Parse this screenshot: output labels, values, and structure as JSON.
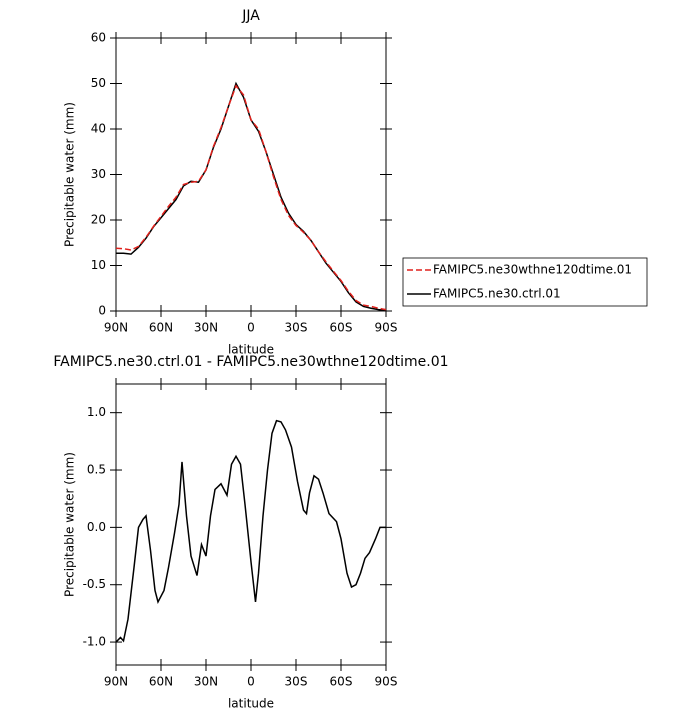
{
  "chart_data": [
    {
      "type": "line",
      "title": "JJA",
      "xlabel": "latitude",
      "ylabel": "Precipitable water (mm)",
      "x": [
        90,
        85,
        80,
        75,
        70,
        65,
        60,
        55,
        50,
        45,
        40,
        35,
        30,
        25,
        20,
        15,
        10,
        5,
        0,
        -5,
        -10,
        -15,
        -20,
        -25,
        -30,
        -35,
        -40,
        -45,
        -50,
        -55,
        -60,
        -65,
        -70,
        -75,
        -80,
        -85,
        -90
      ],
      "series": [
        {
          "name": "FAMIPC5.ne30wthne120dtime.01",
          "color": "#e0201b",
          "linestyle": "dashed",
          "values": [
            13.8,
            13.7,
            13.4,
            14.2,
            16.2,
            18.6,
            20.8,
            23,
            25,
            27.8,
            28.3,
            28.5,
            31,
            36.2,
            40.3,
            45,
            49.5,
            47.5,
            42,
            40,
            35,
            29.5,
            24.5,
            21,
            18.8,
            17.3,
            15.5,
            13,
            10.8,
            8.7,
            6.7,
            4.3,
            2.3,
            1.3,
            1,
            0.6,
            0.3
          ]
        },
        {
          "name": "FAMIPC5.ne30.ctrl.01",
          "color": "#000000",
          "linestyle": "solid",
          "values": [
            12.7,
            12.7,
            12.5,
            14,
            16,
            18.5,
            20.5,
            22.5,
            24.5,
            27.5,
            28.5,
            28.3,
            31,
            36,
            40,
            45,
            50,
            47,
            42,
            39.5,
            35,
            30,
            25,
            21.5,
            19,
            17.5,
            15.5,
            13,
            10.5,
            8.5,
            6.5,
            4,
            2,
            1,
            0.6,
            0.3,
            0.1
          ]
        }
      ],
      "xlim": [
        90,
        -90
      ],
      "xticks": [
        {
          "value": 90,
          "label": "90N"
        },
        {
          "value": 60,
          "label": "60N"
        },
        {
          "value": 30,
          "label": "30N"
        },
        0,
        {
          "value": -30,
          "label": "30S"
        },
        {
          "value": -60,
          "label": "60S"
        },
        {
          "value": -90,
          "label": "90S"
        }
      ],
      "ylim": [
        0,
        60
      ],
      "yticks": [
        0,
        10,
        20,
        30,
        40,
        50,
        60
      ],
      "legend": "right"
    },
    {
      "type": "line",
      "title": "FAMIPC5.ne30.ctrl.01 - FAMIPC5.ne30wthne120dtime.01",
      "xlabel": "latitude",
      "ylabel": "Precipitable water (mm)",
      "x": [
        90,
        87,
        85,
        82,
        78,
        75,
        72,
        70,
        67,
        64,
        62,
        58,
        55,
        51,
        48,
        46,
        43,
        40,
        36,
        33,
        30,
        27,
        24,
        20,
        16,
        13,
        10,
        7,
        4,
        0,
        -3,
        -5,
        -8,
        -11,
        -14,
        -17,
        -20,
        -23,
        -27,
        -31,
        -35,
        -37,
        -39,
        -42,
        -45,
        -48,
        -52,
        -57,
        -60,
        -64,
        -67,
        -70,
        -73,
        -76,
        -79,
        -83,
        -86,
        -90
      ],
      "color": "#000000",
      "values": [
        -1.0,
        -0.96,
        -0.99,
        -0.8,
        -0.35,
        0.0,
        0.07,
        0.1,
        -0.2,
        -0.55,
        -0.65,
        -0.55,
        -0.35,
        -0.05,
        0.2,
        0.57,
        0.1,
        -0.25,
        -0.42,
        -0.15,
        -0.25,
        0.1,
        0.33,
        0.38,
        0.28,
        0.55,
        0.62,
        0.55,
        0.2,
        -0.3,
        -0.65,
        -0.4,
        0.1,
        0.5,
        0.82,
        0.93,
        0.92,
        0.85,
        0.7,
        0.4,
        0.15,
        0.12,
        0.3,
        0.45,
        0.42,
        0.3,
        0.12,
        0.05,
        -0.1,
        -0.4,
        -0.52,
        -0.5,
        -0.4,
        -0.27,
        -0.22,
        -0.1,
        0.0,
        0.0
      ],
      "xlim": [
        90,
        -90
      ],
      "xticks": [
        {
          "value": 90,
          "label": "90N"
        },
        {
          "value": 60,
          "label": "60N"
        },
        {
          "value": 30,
          "label": "30N"
        },
        0,
        {
          "value": -30,
          "label": "30S"
        },
        {
          "value": -60,
          "label": "60S"
        },
        {
          "value": -90,
          "label": "90S"
        }
      ],
      "ylim": [
        -1.2,
        1.25
      ],
      "yticks": [
        {
          "value": -1,
          "label": "-1.0"
        },
        -0.5,
        {
          "value": 0,
          "label": "0.0"
        },
        0.5,
        {
          "value": 1,
          "label": "1.0"
        }
      ]
    }
  ]
}
